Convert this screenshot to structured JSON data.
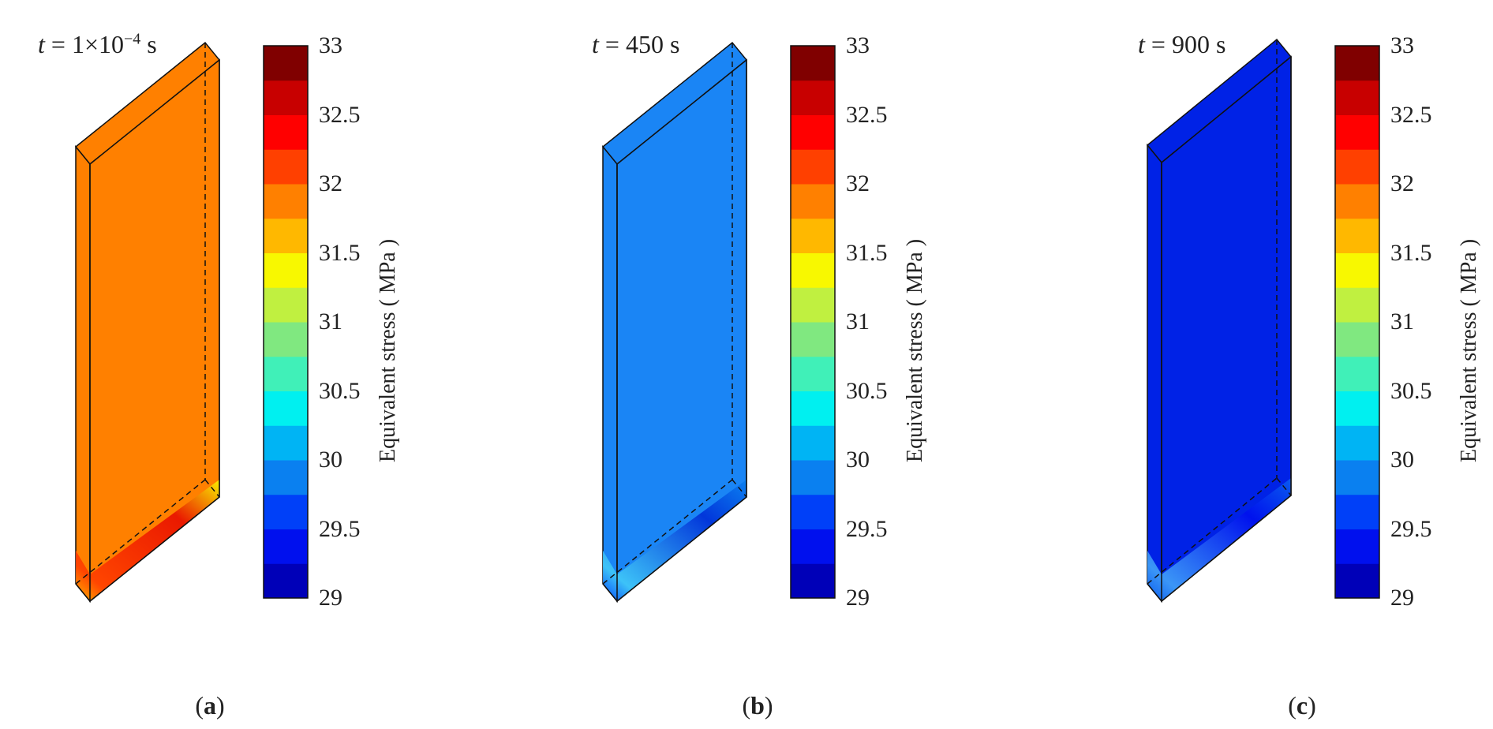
{
  "colorbar": {
    "label": "Equivalent stress ( MPa )",
    "ticks": [
      "33",
      "32.5",
      "32",
      "31.5",
      "31",
      "30.5",
      "30",
      "29.5",
      "29"
    ],
    "min": 29,
    "max": 33,
    "levels": [
      "#0000b8",
      "#0010ee",
      "#0040f8",
      "#0a80f0",
      "#00b4f4",
      "#00f0f0",
      "#40f0b8",
      "#80e880",
      "#c0f040",
      "#f8f800",
      "#ffb800",
      "#ff8000",
      "#ff4000",
      "#ff0000",
      "#c80000",
      "#800000"
    ]
  },
  "panels": [
    {
      "time_italic": "t",
      "time_eq": " = 1×10",
      "time_sup": "−4",
      "time_unit": " s",
      "caption_open": "(",
      "caption_letter": "a",
      "caption_close": ")",
      "body_color": "#ff8000",
      "base_colors": [
        "#ffb800",
        "#ff4000",
        "#e81000",
        "#f8f800"
      ]
    },
    {
      "time_italic": "t",
      "time_eq": " = 450 s",
      "time_sup": "",
      "time_unit": "",
      "caption_open": "(",
      "caption_letter": "b",
      "caption_close": ")",
      "body_color": "#1a85f5",
      "base_colors": [
        "#0040f8",
        "#40c8f8",
        "#0030d8",
        "#0a80f0"
      ]
    },
    {
      "time_italic": "t",
      "time_eq": " = 900 s",
      "time_sup": "",
      "time_unit": "",
      "caption_open": "(",
      "caption_letter": "c",
      "caption_close": ")",
      "body_color": "#0022e6",
      "base_colors": [
        "#0a60f0",
        "#40a0f8",
        "#0010ee",
        "#0a60f0"
      ]
    }
  ]
}
